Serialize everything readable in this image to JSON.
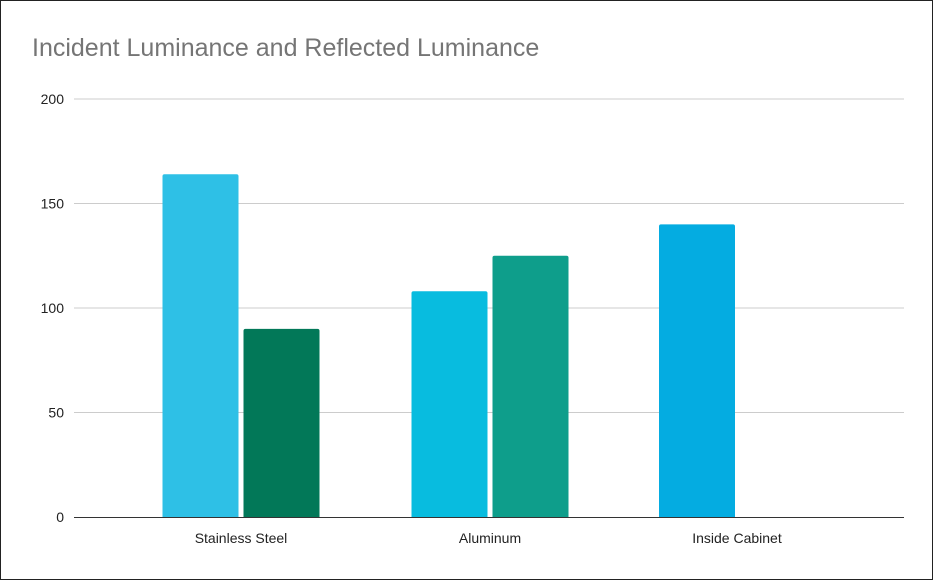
{
  "chart_data": {
    "type": "bar",
    "title": "Incident Luminance and Reflected Luminance",
    "xlabel": "",
    "ylabel": "",
    "categories": [
      "Stainless Steel",
      "Aluminum",
      "Inside Cabinet"
    ],
    "ylim": [
      0,
      200
    ],
    "yticks": [
      0,
      50,
      100,
      150,
      200
    ],
    "grid": true,
    "legend": "none",
    "bars": [
      {
        "category": "Stainless Steel",
        "value": 164,
        "color": "#2EC0E6"
      },
      {
        "category": "Stainless Steel",
        "value": 90,
        "color": "#027858"
      },
      {
        "category": "Aluminum",
        "value": 108,
        "color": "#08BCDF"
      },
      {
        "category": "Aluminum",
        "value": 125,
        "color": "#0E9E8B"
      },
      {
        "category": "Inside Cabinet",
        "value": 140,
        "color": "#04ACE1"
      }
    ]
  }
}
